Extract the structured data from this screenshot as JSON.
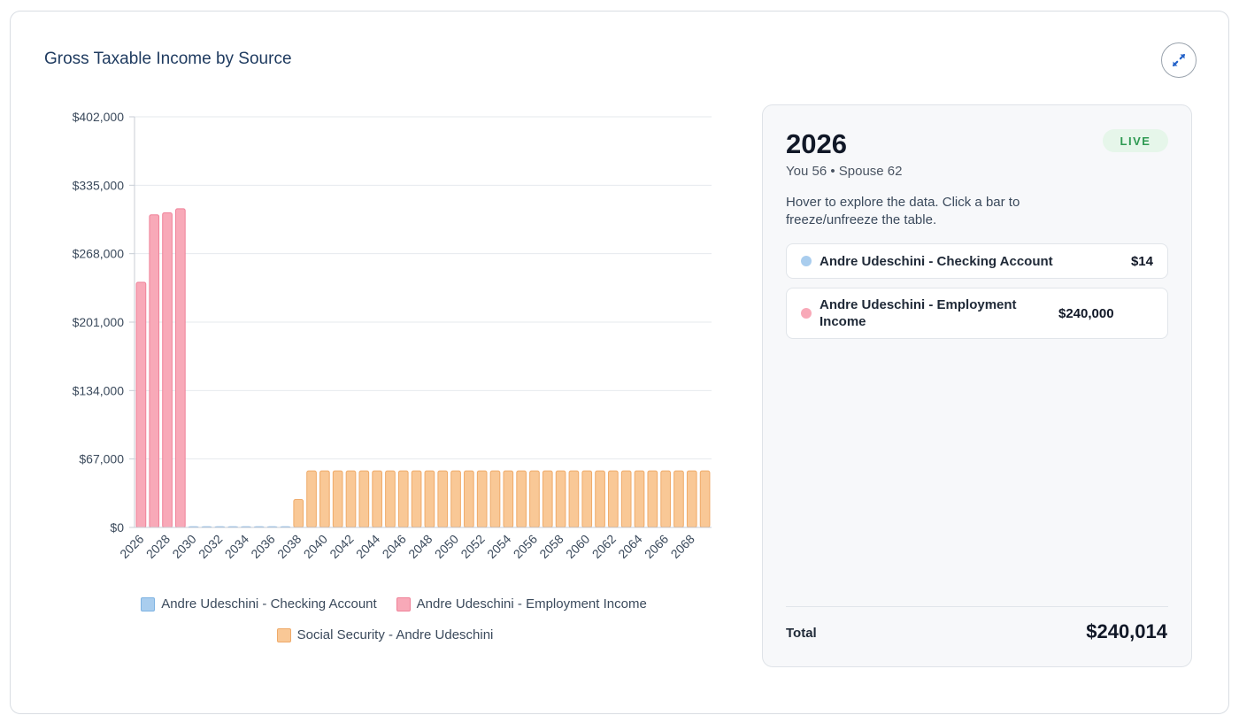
{
  "card": {
    "title": "Gross Taxable Income by Source"
  },
  "icons": {
    "expand": "expand-arrows-icon"
  },
  "colors": {
    "checking": "#a9cdee",
    "checking_border": "#7fb3e2",
    "employment": "#f8a9b8",
    "employment_border": "#ef8299",
    "social_security": "#f9c896",
    "social_security_border": "#efaa69",
    "grid": "#e6e9ee"
  },
  "chart_data": {
    "type": "bar",
    "stacked": true,
    "title": "Gross Taxable Income by Source",
    "xlabel": "",
    "ylabel": "",
    "ylim": [
      0,
      402000
    ],
    "y_ticks": [
      "$0",
      "$67,000",
      "$134,000",
      "$201,000",
      "$268,000",
      "$335,000",
      "$402,000"
    ],
    "y_tick_values": [
      0,
      67000,
      134000,
      201000,
      268000,
      335000,
      402000
    ],
    "grid": true,
    "legend": "bottom",
    "categories": [
      2026,
      2027,
      2028,
      2029,
      2030,
      2031,
      2032,
      2033,
      2034,
      2035,
      2036,
      2037,
      2038,
      2039,
      2040,
      2041,
      2042,
      2043,
      2044,
      2045,
      2046,
      2047,
      2048,
      2049,
      2050,
      2051,
      2052,
      2053,
      2054,
      2055,
      2056,
      2057,
      2058,
      2059,
      2060,
      2061,
      2062,
      2063,
      2064,
      2065,
      2066,
      2067,
      2068,
      2069
    ],
    "x_tick_labels": [
      "2026",
      "2028",
      "2030",
      "2032",
      "2034",
      "2036",
      "2038",
      "2040",
      "2042",
      "2044",
      "2046",
      "2048",
      "2050",
      "2052",
      "2054",
      "2056",
      "2058",
      "2060",
      "2062",
      "2064",
      "2066",
      "2068"
    ],
    "series": [
      {
        "name": "Andre Udeschini - Checking Account",
        "color_key": "checking",
        "values": [
          14,
          14,
          14,
          14,
          300,
          300,
          300,
          300,
          300,
          300,
          300,
          300,
          300,
          300,
          300,
          300,
          300,
          300,
          300,
          300,
          300,
          300,
          300,
          300,
          300,
          300,
          300,
          300,
          300,
          300,
          300,
          300,
          300,
          300,
          300,
          300,
          300,
          300,
          300,
          300,
          300,
          300,
          300,
          300
        ]
      },
      {
        "name": "Andre Udeschini - Employment Income",
        "color_key": "employment",
        "values": [
          240000,
          306000,
          308000,
          312000,
          0,
          0,
          0,
          0,
          0,
          0,
          0,
          0,
          0,
          0,
          0,
          0,
          0,
          0,
          0,
          0,
          0,
          0,
          0,
          0,
          0,
          0,
          0,
          0,
          0,
          0,
          0,
          0,
          0,
          0,
          0,
          0,
          0,
          0,
          0,
          0,
          0,
          0,
          0,
          0
        ]
      },
      {
        "name": "Social Security - Andre Udeschini",
        "color_key": "social_security",
        "values": [
          0,
          0,
          0,
          0,
          0,
          0,
          0,
          0,
          0,
          0,
          0,
          0,
          27000,
          55000,
          55000,
          55000,
          55000,
          55000,
          55000,
          55000,
          55000,
          55000,
          55000,
          55000,
          55000,
          55000,
          55000,
          55000,
          55000,
          55000,
          55000,
          55000,
          55000,
          55000,
          55000,
          55000,
          55000,
          55000,
          55000,
          55000,
          55000,
          55000,
          55000,
          55000
        ]
      }
    ]
  },
  "legend": {
    "items": [
      {
        "label": "Andre Udeschini - Checking Account",
        "color_key": "checking"
      },
      {
        "label": "Andre Udeschini - Employment Income",
        "color_key": "employment"
      },
      {
        "label": "Social Security - Andre Udeschini",
        "color_key": "social_security"
      }
    ]
  },
  "panel": {
    "year": "2026",
    "badge": "LIVE",
    "ages": "You 56 • Spouse 62",
    "hint": "Hover to explore the data. Click a bar to freeze/unfreeze the table.",
    "rows": [
      {
        "name": "Andre Udeschini - Checking Account",
        "value": "$14",
        "color_key": "checking"
      },
      {
        "name": "Andre Udeschini - Employment Income",
        "value": "$240,000",
        "color_key": "employment"
      }
    ],
    "total_label": "Total",
    "total_value": "$240,014"
  }
}
